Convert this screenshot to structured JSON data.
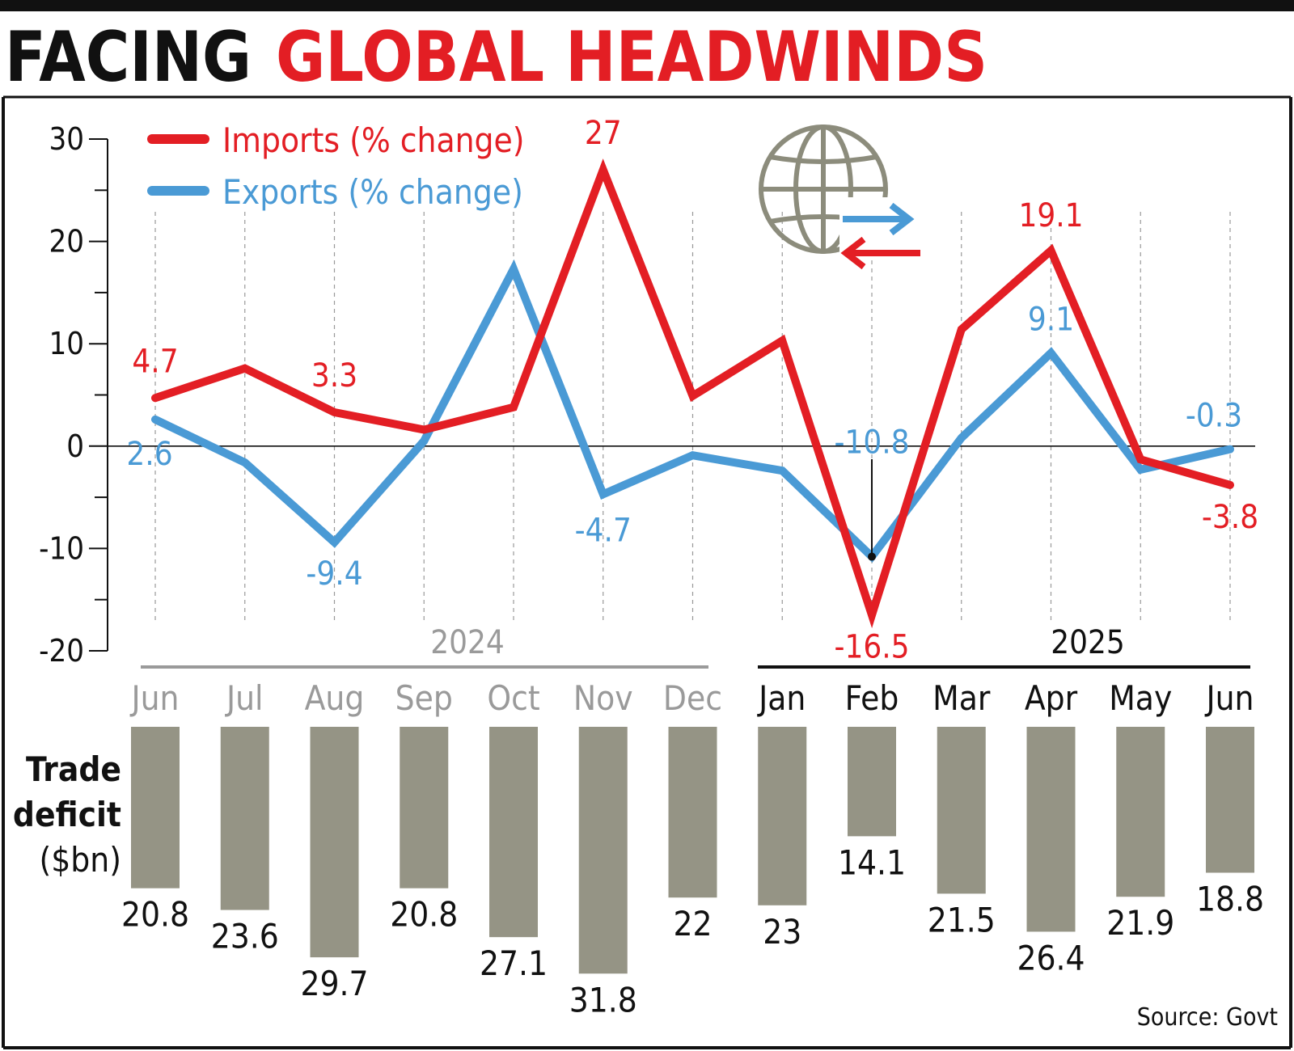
{
  "title": {
    "part1": "FACING",
    "part2": "GLOBAL HEADWINDS"
  },
  "colors": {
    "imports": "#e31e24",
    "exports": "#4a9ad5",
    "bars": "#959485",
    "title_red": "#e31e24",
    "grid": "#999999",
    "year_2024": "#9a9a9a",
    "year_2025": "#111111"
  },
  "icons": [
    "globe-icon",
    "arrow-right-icon",
    "arrow-left-icon"
  ],
  "source": "Source: Govt",
  "deficit_label": {
    "line1": "Trade",
    "line2": "deficit",
    "line3": "($bn)"
  },
  "chart_data": [
    {
      "type": "line",
      "categories": [
        "Jun",
        "Jul",
        "Aug",
        "Sep",
        "Oct",
        "Nov",
        "Dec",
        "Jan",
        "Feb",
        "Mar",
        "Apr",
        "May",
        "Jun"
      ],
      "years": [
        {
          "label": "2024",
          "months": [
            "Jun",
            "Jul",
            "Aug",
            "Sep",
            "Oct",
            "Nov",
            "Dec"
          ]
        },
        {
          "label": "2025",
          "months": [
            "Jan",
            "Feb",
            "Mar",
            "Apr",
            "May",
            "Jun"
          ]
        }
      ],
      "ylim": [
        -20,
        30
      ],
      "yticks": [
        -20,
        -10,
        0,
        10,
        20,
        30
      ],
      "grid": "vertical dashed",
      "legend_position": "top-left",
      "series": [
        {
          "name": "Imports (% change)",
          "values": [
            4.7,
            7.6,
            3.3,
            1.6,
            3.8,
            27,
            4.9,
            10.3,
            -16.5,
            11.4,
            19.1,
            -1.3,
            -3.8
          ],
          "labels": {
            "0": "4.7",
            "2": "3.3",
            "5": "27",
            "8": "-16.5",
            "10": "19.1",
            "12": "-3.8"
          }
        },
        {
          "name": "Exports (% change)",
          "values": [
            2.6,
            -1.6,
            -9.4,
            0.5,
            17.3,
            -4.7,
            -0.9,
            -2.4,
            -10.8,
            0.8,
            9.1,
            -2.3,
            -0.3
          ],
          "labels": {
            "0": "2.6",
            "2": "-9.4",
            "5": "-4.7",
            "8": "-10.8",
            "10": "9.1",
            "12": "-0.3"
          }
        }
      ]
    },
    {
      "type": "bar",
      "name": "Trade deficit ($bn)",
      "categories": [
        "Jun",
        "Jul",
        "Aug",
        "Sep",
        "Oct",
        "Nov",
        "Dec",
        "Jan",
        "Feb",
        "Mar",
        "Apr",
        "May",
        "Jun"
      ],
      "values": [
        20.8,
        23.6,
        29.7,
        20.8,
        27.1,
        31.8,
        22,
        23,
        14.1,
        21.5,
        26.4,
        21.9,
        18.8
      ],
      "value_labels": [
        "20.8",
        "23.6",
        "29.7",
        "20.8",
        "27.1",
        "31.8",
        "22",
        "23",
        "14.1",
        "21.5",
        "26.4",
        "21.9",
        "18.8"
      ],
      "orientation": "downward"
    }
  ]
}
